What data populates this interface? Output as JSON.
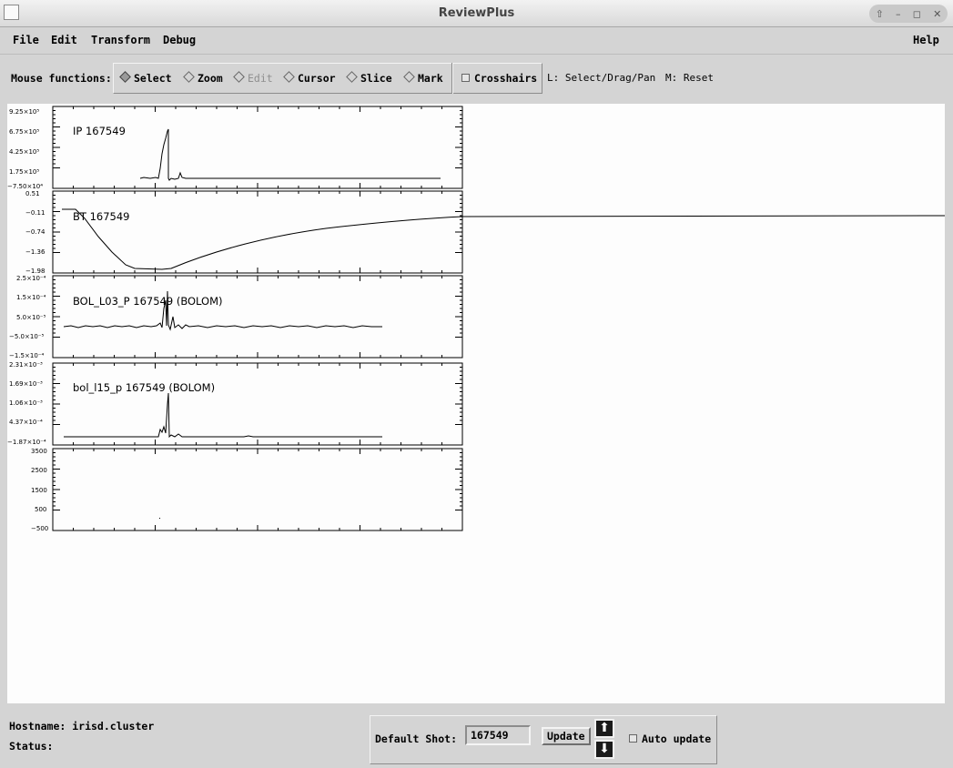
{
  "window": {
    "title": "ReviewPlus",
    "controls": [
      "⇧",
      "–",
      "◻",
      "✕"
    ]
  },
  "menubar": {
    "items": [
      "File",
      "Edit",
      "Transform",
      "Debug"
    ],
    "help": "Help"
  },
  "toolbar": {
    "label": "Mouse functions:",
    "modes": [
      {
        "label": "Select",
        "selected": true,
        "enabled": true
      },
      {
        "label": "Zoom",
        "selected": false,
        "enabled": true
      },
      {
        "label": "Edit",
        "selected": false,
        "enabled": false
      },
      {
        "label": "Cursor",
        "selected": false,
        "enabled": true
      },
      {
        "label": "Slice",
        "selected": false,
        "enabled": true
      },
      {
        "label": "Mark",
        "selected": false,
        "enabled": true
      }
    ],
    "crosshairs": {
      "label": "Crosshairs",
      "checked": false
    },
    "hints": [
      "L: Select/Drag/Pan",
      "M: Reset"
    ]
  },
  "plots": [
    {
      "label": "IP  167549",
      "yticks": [
        "9.25×10⁵",
        "6.75×10⁵",
        "4.25×10⁵",
        "1.75×10⁵",
        "−7.50×10⁴"
      ]
    },
    {
      "label": "BT  167549",
      "yticks": [
        "0.51",
        "−0.11",
        "−0.74",
        "−1.36",
        "−1.98"
      ]
    },
    {
      "label": "BOL_L03_P  167549 (BOLOM)",
      "yticks": [
        "2.5×10⁻⁴",
        "1.5×10⁻⁴",
        "5.0×10⁻⁵",
        "−5.0×10⁻⁵",
        "−1.5×10⁻⁴"
      ]
    },
    {
      "label": "bol_l15_p  167549 (BOLOM)",
      "yticks": [
        "2.31×10⁻³",
        "1.69×10⁻³",
        "1.06×10⁻³",
        "4.37×10⁻⁴",
        "−1.87×10⁻⁴"
      ]
    },
    {
      "label": "",
      "yticks": [
        "3500",
        "2500",
        "1500",
        "500",
        "−500"
      ]
    }
  ],
  "status": {
    "hostname": "Hostname: irisd.cluster",
    "status": "Status:",
    "default_shot_label": "Default Shot:",
    "default_shot_value": "167549",
    "update_label": "Update",
    "auto_update_label": "Auto update",
    "auto_update_checked": false
  }
}
